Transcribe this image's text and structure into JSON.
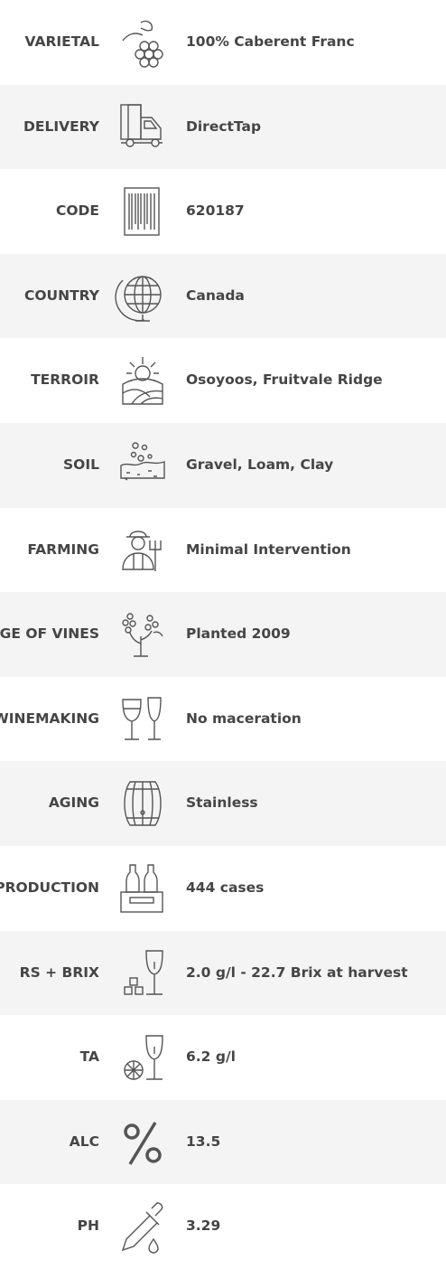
{
  "rows": [
    {
      "label": "VARIETAL",
      "value": "100% Caberent Franc"
    },
    {
      "label": "DELIVERY",
      "value": "DirectTap"
    },
    {
      "label": "CODE",
      "value": "620187"
    },
    {
      "label": "COUNTRY",
      "value": "Canada"
    },
    {
      "label": "TERROIR",
      "value": "Osoyoos, Fruitvale Ridge"
    },
    {
      "label": "SOIL",
      "value": "Gravel, Loam, Clay"
    },
    {
      "label": "FARMING",
      "value": "Minimal Intervention"
    },
    {
      "label": "AGE OF VINES",
      "value": "Planted 2009"
    },
    {
      "label": "WINEMAKING",
      "value": "No maceration"
    },
    {
      "label": "AGING",
      "value": "Stainless"
    },
    {
      "label": "PRODUCTION",
      "value": "444 cases"
    },
    {
      "label": "RS + BRIX",
      "value": "2.0 g/l - 22.7 Brix at harvest"
    },
    {
      "label": "TA",
      "value": "6.2 g/l"
    },
    {
      "label": "ALC",
      "value": "13.5"
    },
    {
      "label": "PH",
      "value": "3.29"
    }
  ]
}
